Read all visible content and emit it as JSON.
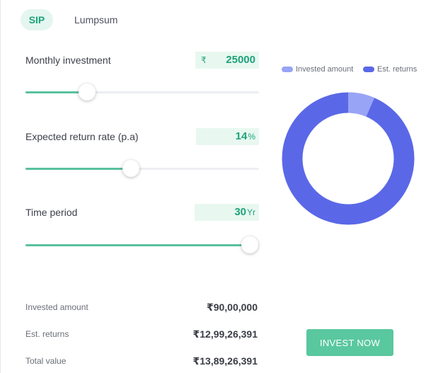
{
  "tabs": [
    {
      "label": "SIP",
      "active": true
    },
    {
      "label": "Lumpsum",
      "active": false
    }
  ],
  "inputs": {
    "monthly_investment": {
      "label": "Monthly investment",
      "currency": "₹",
      "value": "25000",
      "slider_fraction": 0.265
    },
    "return_rate": {
      "label": "Expected return rate (p.a)",
      "value": "14",
      "unit": "%",
      "slider_fraction": 0.45
    },
    "time_period": {
      "label": "Time period",
      "value": "30",
      "unit": "Yr",
      "slider_fraction": 0.96
    }
  },
  "chart": {
    "legend": {
      "invested": "Invested amount",
      "returns": "Est. returns"
    },
    "invested_fraction": 0.065,
    "colors": {
      "invested": "#98a4f5",
      "returns": "#5a68e7"
    }
  },
  "summary": {
    "invested_label": "Invested amount",
    "invested_value": "₹90,00,000",
    "returns_label": "Est. returns",
    "returns_value": "₹12,99,26,391",
    "total_label": "Total value",
    "total_value": "₹13,89,26,391"
  },
  "cta": {
    "label": "INVEST NOW"
  },
  "theme": {
    "accent": "#5ac19c",
    "accent_light": "#e8f8f1"
  }
}
